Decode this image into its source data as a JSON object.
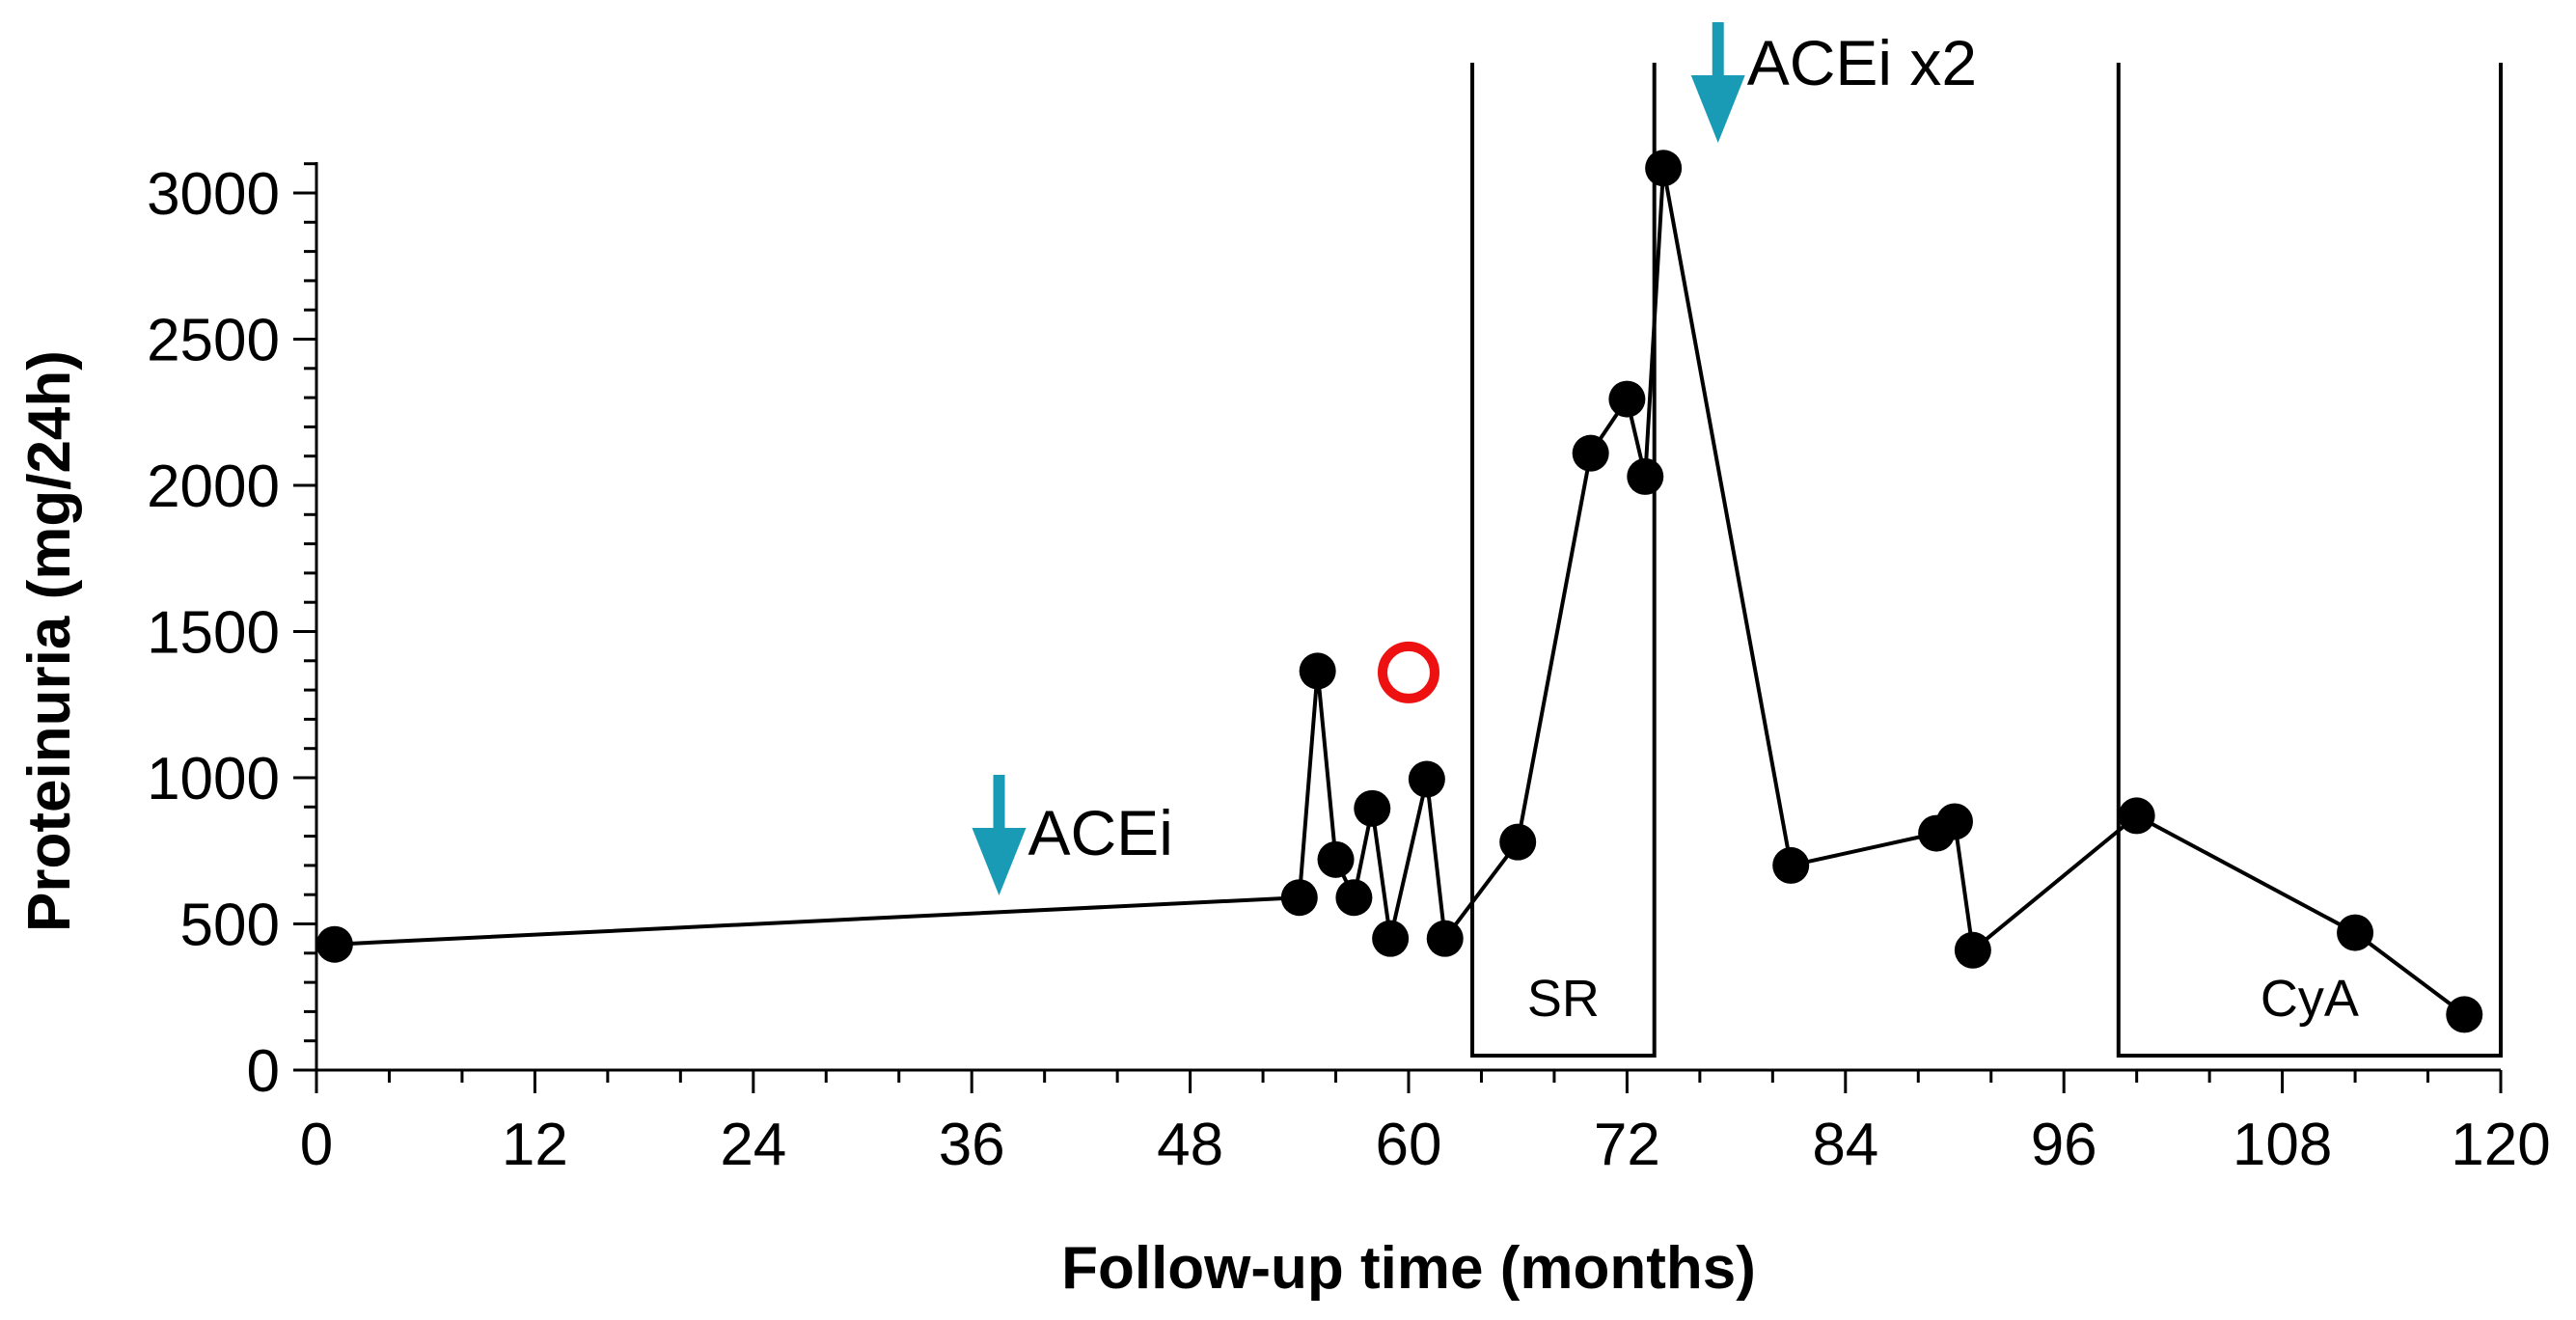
{
  "chart_data": {
    "type": "line",
    "title": "",
    "xlabel": "Follow-up time (months)",
    "ylabel": "Proteinuria (mg/24h)",
    "xlim": [
      0,
      120
    ],
    "ylim": [
      0,
      3000
    ],
    "x_ticks": [
      0,
      12,
      24,
      36,
      48,
      60,
      72,
      84,
      96,
      108,
      120
    ],
    "x_tick_labels": [
      "0",
      "12",
      "24",
      "36",
      "48",
      "60",
      "72",
      "84",
      "96",
      "108",
      "120"
    ],
    "x_minor_step": 4,
    "y_ticks": [
      0,
      500,
      1000,
      1500,
      2000,
      2500,
      3000
    ],
    "y_tick_labels": [
      "0",
      "500",
      "1000",
      "1500",
      "2000",
      "2500",
      "3000"
    ],
    "y_minor_step": 100,
    "series": [
      {
        "name": "Proteinuria",
        "x": [
          1,
          54,
          55,
          56,
          57,
          58,
          59,
          61,
          62,
          66,
          70,
          72,
          73,
          74,
          81,
          89,
          90,
          91,
          100,
          112,
          118
        ],
        "y": [
          430,
          590,
          1365,
          720,
          590,
          895,
          450,
          995,
          450,
          780,
          2110,
          2295,
          2030,
          3085,
          700,
          810,
          850,
          410,
          870,
          470,
          190
        ]
      }
    ],
    "outlier_point": {
      "x": 60,
      "y": 1360,
      "color": "#ee1111"
    },
    "periods": [
      {
        "label": "SR",
        "x_start": 63.5,
        "x_end": 73.5
      },
      {
        "label": "CyA",
        "x_start": 99,
        "x_end": 120
      }
    ],
    "annotations": [
      {
        "label": "ACEi",
        "x": 37.5,
        "y": 600,
        "arrow_color": "#1a9bb5"
      },
      {
        "label": "ACEi x2",
        "x": 77,
        "y": 3150,
        "arrow_color": "#1a9bb5"
      }
    ]
  }
}
